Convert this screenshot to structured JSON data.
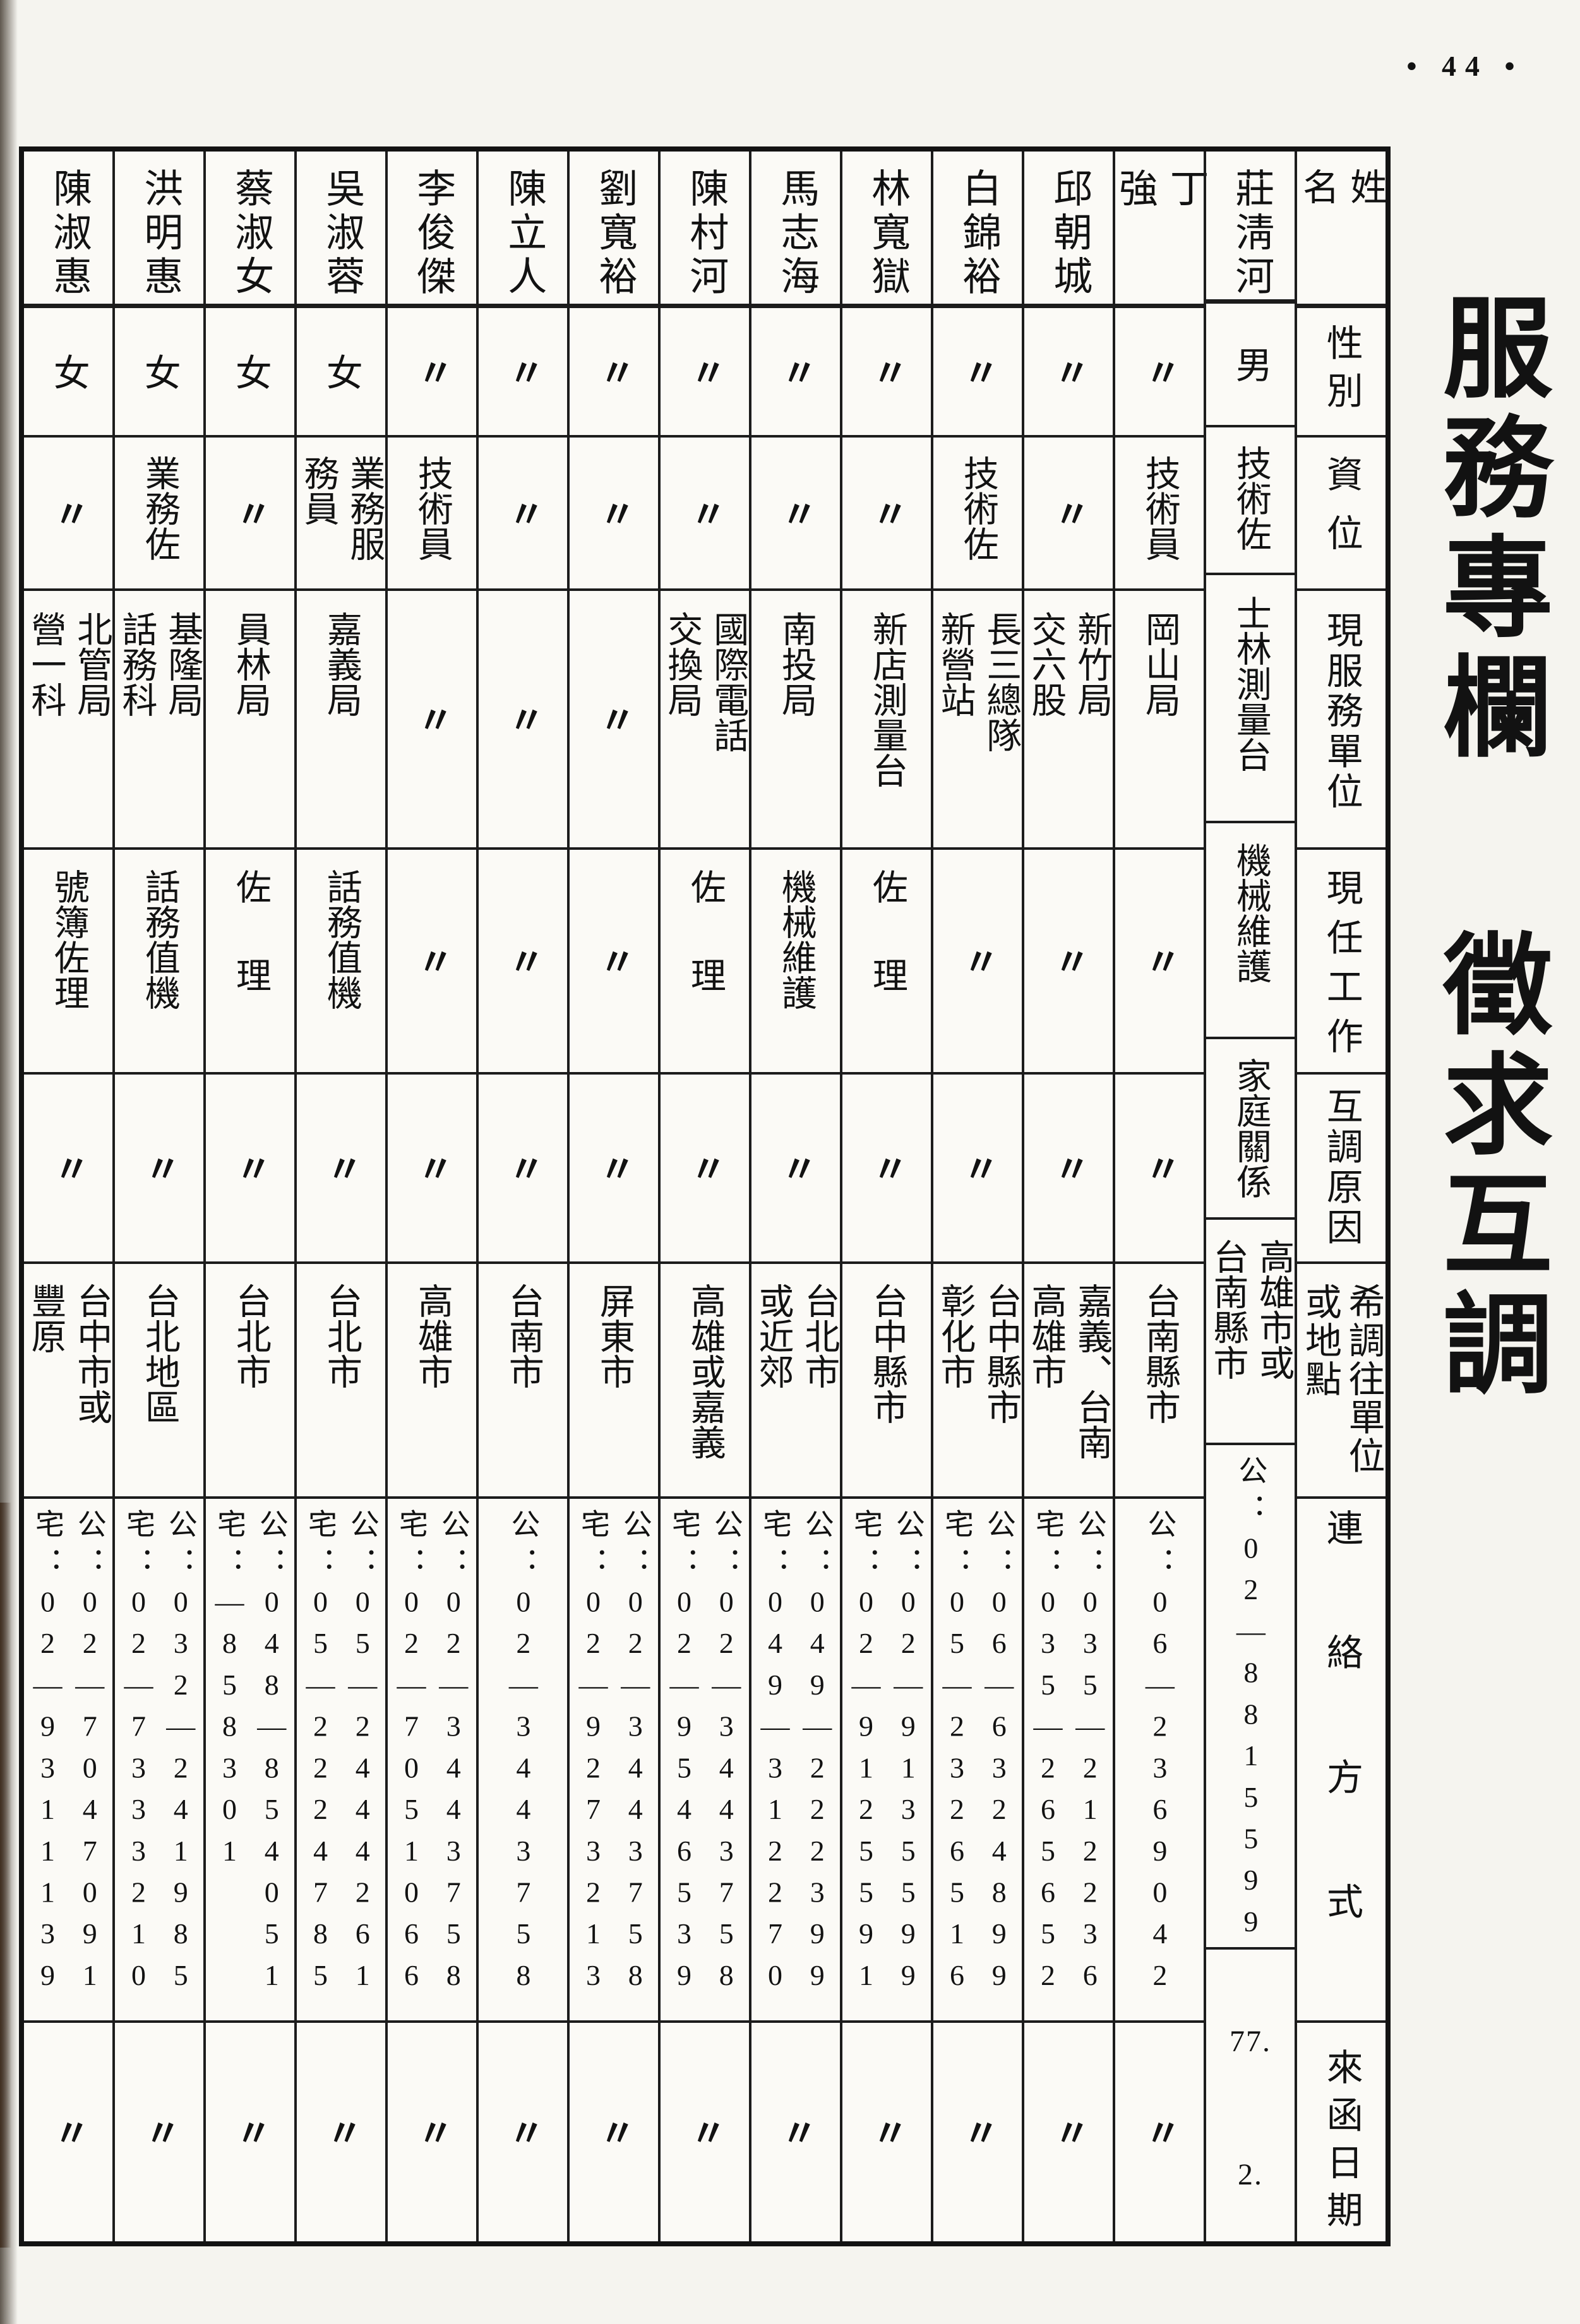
{
  "page": {
    "number": "• 44 •"
  },
  "title": {
    "line1": "服務專欄",
    "line2": "徵求互調"
  },
  "table": {
    "header": {
      "name": "姓名",
      "gender": "性別",
      "grade": "資位",
      "unit": "現服務單位",
      "job": "現任工作",
      "reason": "互調原因",
      "desired": "希調往單位\n或地點",
      "contact": "連絡方式",
      "date": "來函日期"
    },
    "persons": [
      {
        "name": "莊淸河",
        "gender": "男",
        "grade": "技術佐",
        "unit": "士林測量台",
        "job": "機械維護",
        "reason": "家庭關係",
        "desired": "高雄市或\n台南縣市",
        "contact": "公：02—8815599",
        "date": "77.\n2."
      },
      {
        "name": "丁強",
        "gender": "〃",
        "grade": "技術員",
        "unit": "岡山局",
        "job": "〃",
        "reason": "〃",
        "desired": "台南縣市",
        "contact": "公：06—2369042",
        "date": "〃"
      },
      {
        "name": "邱朝城",
        "gender": "〃",
        "grade": "〃",
        "unit": "新竹局\n交六股",
        "job": "〃",
        "reason": "〃",
        "desired": "嘉義、台南\n高雄市",
        "contact": "公：035—212236\n宅：035—265652",
        "date": "〃"
      },
      {
        "name": "白錦裕",
        "gender": "〃",
        "grade": "技術佐",
        "unit": "長三總隊\n新營站",
        "job": "〃",
        "reason": "〃",
        "desired": "台中縣市\n彰化市",
        "contact": "公：06—6324899\n宅：05—2326516",
        "date": "〃"
      },
      {
        "name": "林寬獄",
        "gender": "〃",
        "grade": "〃",
        "unit": "新店測量台",
        "job": "佐理",
        "reason": "〃",
        "desired": "台中縣市",
        "contact": "公：02—9135599\n宅：02—9125591",
        "date": "〃"
      },
      {
        "name": "馬志海",
        "gender": "〃",
        "grade": "〃",
        "unit": "南投局",
        "job": "機械維護",
        "reason": "〃",
        "desired": "台北市\n或近郊",
        "contact": "公：049—222399\n宅：049—312270",
        "date": "〃"
      },
      {
        "name": "陳村河",
        "gender": "〃",
        "grade": "〃",
        "unit": "國際電話\n交換局",
        "job": "佐理",
        "reason": "〃",
        "desired": "高雄或嘉義",
        "contact": "公：02—3443758\n宅：02—9546539",
        "date": "〃"
      },
      {
        "name": "劉寬裕",
        "gender": "〃",
        "grade": "〃",
        "unit": "〃",
        "job": "〃",
        "reason": "〃",
        "desired": "屏東市",
        "contact": "公：02—3443758\n宅：02—9273213",
        "date": "〃"
      },
      {
        "name": "陳立人",
        "gender": "〃",
        "grade": "〃",
        "unit": "〃",
        "job": "〃",
        "reason": "〃",
        "desired": "台南市",
        "contact": "公：02—3443758",
        "date": "〃"
      },
      {
        "name": "李俊傑",
        "gender": "〃",
        "grade": "技術員",
        "unit": "〃",
        "job": "〃",
        "reason": "〃",
        "desired": "高雄市",
        "contact": "公：02—3443758\n宅：02—7051066",
        "date": "〃"
      },
      {
        "name": "吳淑蓉",
        "gender": "女",
        "grade": "業務服\n務員",
        "unit": "嘉義局",
        "job": "話務值機",
        "reason": "〃",
        "desired": "台北市",
        "contact": "公：05—2444261\n宅：05—2224785",
        "date": "〃"
      },
      {
        "name": "蔡淑女",
        "gender": "女",
        "grade": "〃",
        "unit": "員林局",
        "job": "佐理",
        "reason": "〃",
        "desired": "台北市",
        "contact": "公：048—854051\n宅：—858301",
        "date": "〃"
      },
      {
        "name": "洪明惠",
        "gender": "女",
        "grade": "業務佐",
        "unit": "基隆局\n話務科",
        "job": "話務值機",
        "reason": "〃",
        "desired": "台北地區",
        "contact": "公：032—241985\n宅：02—7333210",
        "date": "〃"
      },
      {
        "name": "陳淑惠",
        "gender": "女",
        "grade": "〃",
        "unit": "北管局\n營一科",
        "job": "號簿佐理",
        "reason": "〃",
        "desired": "台中市或\n豐原",
        "contact": "公：02—7047091\n宅：02—9311139",
        "date": "〃"
      }
    ]
  }
}
